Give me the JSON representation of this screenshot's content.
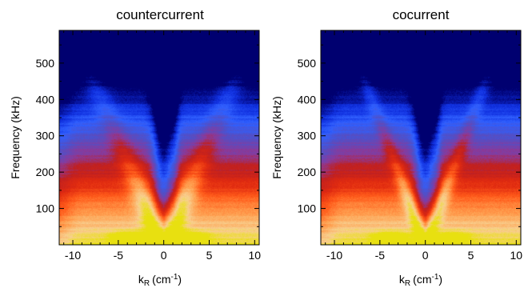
{
  "chart_data": [
    {
      "type": "heatmap",
      "title": "countercurrent",
      "xlabel": "k_R (cm^-1)",
      "xlabel_main": "k",
      "xlabel_sub": "R",
      "xlabel_unit_base": "(cm",
      "xlabel_unit_exp": "-1",
      "xlabel_unit_close": ")",
      "ylabel": "Frequency (kHz)",
      "xlim": [
        -11.5,
        10.5
      ],
      "ylim": [
        0,
        590
      ],
      "xticks": [
        -10,
        -5,
        0,
        5,
        10
      ],
      "yticks": [
        100,
        200,
        300,
        400,
        500
      ],
      "colormap": [
        "#000070",
        "#1030e0",
        "#3060ff",
        "#5050c8",
        "#8a3a9a",
        "#c02020",
        "#e02a10",
        "#ff5a1a",
        "#ffa050",
        "#f8d090",
        "#e8e010"
      ],
      "features": {
        "v_slope_khz_per_cm": 58,
        "v_width_khz": 55,
        "hot_spots": [
          {
            "k": -3.8,
            "f": 18,
            "intensity": 1.0
          },
          {
            "k": 3.0,
            "f": 20,
            "intensity": 0.7
          }
        ]
      }
    },
    {
      "type": "heatmap",
      "title": "cocurrent",
      "xlabel": "k_R (cm^-1)",
      "xlabel_main": "k",
      "xlabel_sub": "R",
      "xlabel_unit_base": "(cm",
      "xlabel_unit_exp": "-1",
      "xlabel_unit_close": ")",
      "ylabel": "Frequency (kHz)",
      "xlim": [
        -11.5,
        10.5
      ],
      "ylim": [
        0,
        590
      ],
      "xticks": [
        -10,
        -5,
        0,
        5,
        10
      ],
      "yticks": [
        100,
        200,
        300,
        400,
        500
      ],
      "colormap": [
        "#000070",
        "#1030e0",
        "#3060ff",
        "#5050c8",
        "#8a3a9a",
        "#c02020",
        "#e02a10",
        "#ff5a1a",
        "#ffa050",
        "#f8d090",
        "#e8e010"
      ],
      "features": {
        "v_slope_khz_per_cm": 68,
        "v_width_khz": 40,
        "hot_spots": [
          {
            "k": -3.8,
            "f": 18,
            "intensity": 0.85
          },
          {
            "k": 3.0,
            "f": 20,
            "intensity": 0.6
          }
        ]
      }
    }
  ]
}
